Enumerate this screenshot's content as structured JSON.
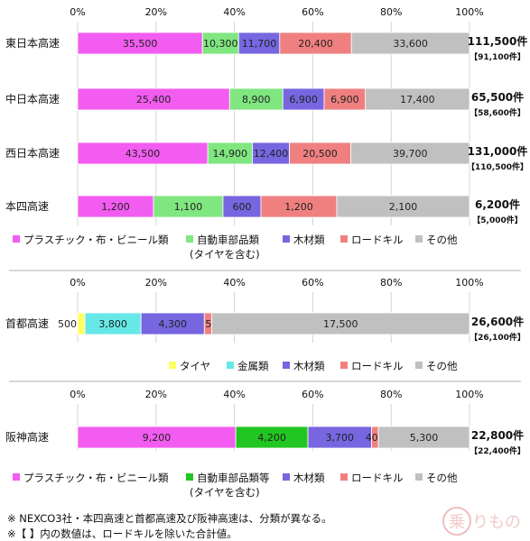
{
  "chart_data": [
    {
      "type": "bar",
      "orientation": "horizontal",
      "stacked": true,
      "percent": true,
      "categories": [
        "東日本高速",
        "中日本高速",
        "西日本高速",
        "本四高速"
      ],
      "series": [
        {
          "name": "プラスチック・布・ビニール類",
          "color": "#f25cf0",
          "values": [
            35500,
            25400,
            43500,
            1200
          ]
        },
        {
          "name": "自動車部品類",
          "color": "#80e680",
          "values": [
            10300,
            8900,
            14900,
            1100
          ]
        },
        {
          "name": "木材類",
          "color": "#7766e0",
          "values": [
            11700,
            6900,
            12400,
            600
          ]
        },
        {
          "name": "ロードキル",
          "color": "#f08080",
          "values": [
            20400,
            6900,
            20500,
            1200
          ]
        },
        {
          "name": "その他",
          "color": "#c0c0c0",
          "values": [
            33600,
            17400,
            39700,
            2100
          ]
        }
      ],
      "value_labels": [
        [
          "35,500",
          "10,300",
          "11,700",
          "20,400",
          "33,600"
        ],
        [
          "25,400",
          "8,900",
          "6,900",
          "6,900",
          "17,400"
        ],
        [
          "43,500",
          "14,900",
          "12,400",
          "20,500",
          "39,700"
        ],
        [
          "1,200",
          "1,100",
          "600",
          "1,200",
          "2,100"
        ]
      ],
      "totals": [
        "111,500件",
        "65,500件",
        "131,000件",
        "6,200件"
      ],
      "subtotals": [
        "【91,100件】",
        "【58,600件】",
        "【110,500件】",
        "【5,000件】"
      ],
      "xticks": [
        "0%",
        "20%",
        "40%",
        "60%",
        "80%",
        "100%"
      ],
      "legend_note": "(タイヤを含む)"
    },
    {
      "type": "bar",
      "orientation": "horizontal",
      "stacked": true,
      "percent": true,
      "categories": [
        "首都高速"
      ],
      "series": [
        {
          "name": "タイヤ",
          "color": "#ffff66",
          "values": [
            500
          ]
        },
        {
          "name": "金属類",
          "color": "#66e8e8",
          "values": [
            3800
          ]
        },
        {
          "name": "木材類",
          "color": "#7766e0",
          "values": [
            4300
          ]
        },
        {
          "name": "ロードキル",
          "color": "#f08080",
          "values": [
            500
          ]
        },
        {
          "name": "その他",
          "color": "#c0c0c0",
          "values": [
            17500
          ]
        }
      ],
      "value_labels": [
        [
          "500",
          "3,800",
          "4,300",
          "500",
          "17,500"
        ]
      ],
      "totals": [
        "26,600件"
      ],
      "subtotals": [
        "【26,100件】"
      ],
      "xticks": [
        "0%",
        "20%",
        "40%",
        "60%",
        "80%",
        "100%"
      ]
    },
    {
      "type": "bar",
      "orientation": "horizontal",
      "stacked": true,
      "percent": true,
      "categories": [
        "阪神高速"
      ],
      "series": [
        {
          "name": "プラスチック・布・ビニール類",
          "color": "#f25cf0",
          "values": [
            9200
          ]
        },
        {
          "name": "自動車部品類等",
          "color": "#22c622",
          "values": [
            4200
          ]
        },
        {
          "name": "木材類",
          "color": "#7766e0",
          "values": [
            3700
          ]
        },
        {
          "name": "ロードキル",
          "color": "#f08080",
          "values": [
            400
          ]
        },
        {
          "name": "その他",
          "color": "#c0c0c0",
          "values": [
            5300
          ]
        }
      ],
      "value_labels": [
        [
          "9,200",
          "4,200",
          "3,700",
          "400",
          "5,300"
        ]
      ],
      "totals": [
        "22,800件"
      ],
      "subtotals": [
        "【22,400件】"
      ],
      "xticks": [
        "0%",
        "20%",
        "40%",
        "60%",
        "80%",
        "100%"
      ],
      "legend_note": "(タイヤを含む)"
    }
  ],
  "notes": [
    "※ NEXCO3社・本四高速と首都高速及び阪神高速は、分類が異なる。",
    "※【 】内の数値は、ロードキルを除いた合計値。"
  ],
  "watermark": "乗りものニュース",
  "watermark_glyph": "乗"
}
